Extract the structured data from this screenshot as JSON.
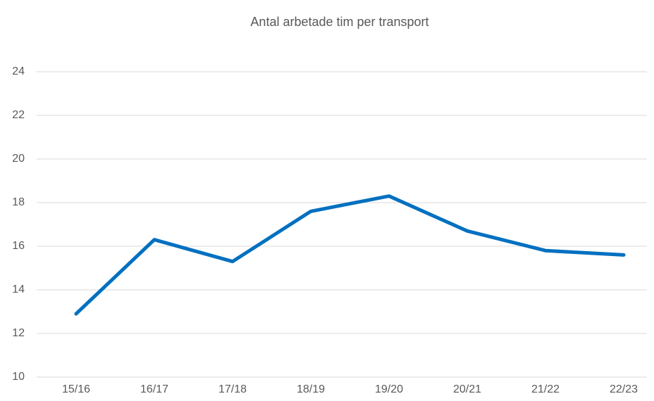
{
  "chart_data": {
    "type": "line",
    "title": "Antal arbetade tim per transport",
    "categories": [
      "15/16",
      "16/17",
      "17/18",
      "18/19",
      "19/20",
      "20/21",
      "21/22",
      "22/23"
    ],
    "series": [
      {
        "name": "Antal arbetade tim per transport",
        "color": "#0070c0",
        "values": [
          12.9,
          16.3,
          15.3,
          17.6,
          18.3,
          16.7,
          15.8,
          15.6
        ]
      }
    ],
    "ylim": [
      10,
      24
    ],
    "yticks": [
      10,
      12,
      14,
      16,
      18,
      20,
      22,
      24
    ],
    "grid": true
  }
}
